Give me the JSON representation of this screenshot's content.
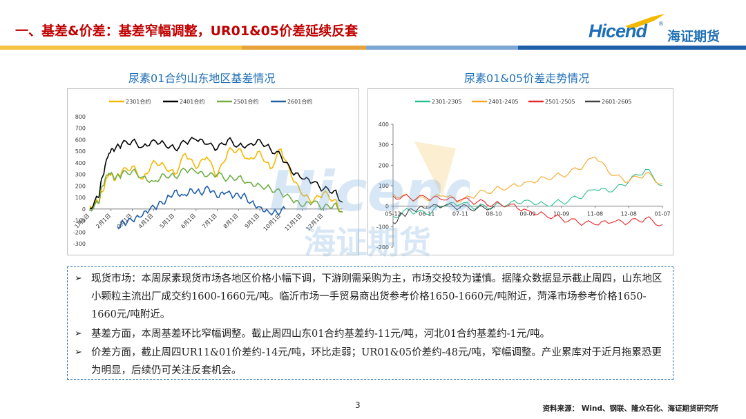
{
  "header": {
    "title": "一、基差&价差：基差窄幅调整，UR01&05价差延续反套",
    "logo_text": "Hicend",
    "logo_cn": "海证期货",
    "band_colors": [
      "#f5c342",
      "#e8a23a",
      "#7aa7d4",
      "#1f5fa8"
    ]
  },
  "watermark": {
    "text": "Hicend",
    "cn": "海证期货"
  },
  "charts": [
    {
      "title": "尿素01合约山东地区基差情况",
      "chart_data": {
        "type": "line",
        "title": "尿素01合约山东地区基差情况",
        "legend_position": "top",
        "ylim": [
          -300,
          800
        ],
        "yticks": [
          -300,
          -200,
          -100,
          0,
          100,
          200,
          300,
          400,
          500,
          600,
          700,
          800
        ],
        "xticks": [
          "1月1日",
          "2月1日",
          "3月1日",
          "4月1日",
          "5月1日",
          "6月1日",
          "7月1日",
          "8月1日",
          "9月1日",
          "10月1日",
          "11月1日",
          "12月1日"
        ],
        "series": [
          {
            "name": "2301合约",
            "color": "#f5b800",
            "x": [
              0,
              0.4,
              0.6,
              0.9,
              1.2,
              1.5,
              2,
              2.5,
              3,
              3.5,
              4,
              4.5,
              5,
              5.5,
              6,
              6.5,
              7,
              7.5,
              8,
              8.5,
              9,
              9.5,
              10,
              10.5,
              11,
              11.5,
              11.9
            ],
            "y": [
              30,
              60,
              150,
              300,
              250,
              320,
              370,
              260,
              420,
              380,
              300,
              480,
              350,
              450,
              280,
              500,
              520,
              430,
              500,
              350,
              520,
              280,
              120,
              60,
              140,
              80,
              -30
            ]
          },
          {
            "name": "2401合约",
            "color": "#000000",
            "x": [
              0,
              0.4,
              0.6,
              0.9,
              1.2,
              1.5,
              2,
              2.5,
              3,
              3.5,
              4,
              4.5,
              5,
              5.5,
              6,
              6.5,
              7,
              7.5,
              8,
              8.5,
              9,
              9.5,
              10,
              10.5,
              11,
              11.5,
              11.9
            ],
            "y": [
              10,
              100,
              280,
              480,
              520,
              560,
              590,
              540,
              600,
              570,
              520,
              580,
              600,
              560,
              520,
              600,
              550,
              560,
              600,
              520,
              460,
              320,
              260,
              230,
              170,
              160,
              60
            ]
          },
          {
            "name": "2501合约",
            "color": "#70ad47",
            "x": [
              0,
              0.4,
              0.6,
              0.9,
              1.2,
              1.5,
              2,
              2.5,
              3,
              3.5,
              4,
              4.5,
              5,
              5.5,
              6,
              6.5,
              7,
              7.5,
              8,
              8.5,
              9,
              9.5,
              10,
              10.5,
              11,
              11.5,
              11.9
            ],
            "y": [
              0,
              50,
              200,
              310,
              260,
              300,
              330,
              280,
              240,
              300,
              280,
              340,
              320,
              280,
              300,
              260,
              280,
              230,
              210,
              180,
              140,
              80,
              20,
              60,
              10,
              40,
              -20
            ]
          },
          {
            "name": "2601合约",
            "color": "#1f5fa8",
            "x": [
              1.3,
              1.6,
              2,
              2.4,
              2.8,
              3.2,
              3.6,
              4,
              4.4,
              4.8,
              5.2,
              5.6,
              6,
              6.4,
              6.8,
              7.2,
              7.6,
              8,
              8.4,
              8.8,
              9.2
            ],
            "y": [
              -150,
              -120,
              -100,
              -70,
              -10,
              30,
              80,
              160,
              120,
              170,
              140,
              180,
              100,
              140,
              110,
              120,
              60,
              20,
              -20,
              -30,
              0
            ]
          }
        ]
      }
    },
    {
      "title": "尿素01&05价差走势情况",
      "chart_data": {
        "type": "line",
        "title": "尿素01&05价差走势情况",
        "legend_position": "top",
        "ylim": [
          -200,
          400
        ],
        "yticks": [
          -200,
          -100,
          0,
          100,
          200,
          300,
          400
        ],
        "xticks": [
          "05-12",
          "06-11",
          "07-11",
          "08-10",
          "09-09",
          "10-09",
          "11-08",
          "12-08",
          "01-07"
        ],
        "series": [
          {
            "name": "2301-2305",
            "color": "#2bbf8e",
            "x": [
              0,
              0.5,
              1,
              1.5,
              2,
              2.5,
              3,
              3.5,
              4,
              4.5,
              5,
              5.5,
              6,
              6.5,
              7,
              7.5,
              8
            ],
            "y": [
              -50,
              -20,
              -40,
              0,
              10,
              -5,
              0,
              20,
              30,
              10,
              20,
              40,
              80,
              70,
              120,
              180,
              100
            ]
          },
          {
            "name": "2401-2405",
            "color": "#f5a623",
            "x": [
              0,
              0.5,
              1,
              1.5,
              2,
              2.5,
              3,
              3.5,
              4,
              4.5,
              5,
              5.5,
              6,
              6.5,
              7,
              7.5,
              8
            ],
            "y": [
              60,
              40,
              30,
              50,
              20,
              60,
              80,
              100,
              120,
              140,
              150,
              180,
              240,
              150,
              120,
              160,
              110
            ]
          },
          {
            "name": "2501-2505",
            "color": "#e8262a",
            "x": [
              0,
              0.5,
              1,
              1.5,
              2,
              2.5,
              3,
              3.5,
              4,
              4.5,
              5,
              5.5,
              6,
              6.5,
              7,
              7.5,
              8
            ],
            "y": [
              50,
              40,
              40,
              30,
              30,
              20,
              10,
              10,
              -20,
              -40,
              -60,
              -80,
              -90,
              -80,
              -80,
              -60,
              -90
            ]
          },
          {
            "name": "2601-2605",
            "color": "#404040",
            "x": [
              0,
              0.3,
              0.6,
              1,
              1.5,
              2,
              2.5,
              3
            ],
            "y": [
              -80,
              -40,
              -20,
              -10,
              0,
              -5,
              -10,
              0
            ]
          }
        ]
      }
    }
  ],
  "bullets": [
    "现货市场：本周尿素现货市场各地区价格小幅下调，下游刚需采购为主，市场交投较为谨慎。据隆众数据显示截止周四，山东地区小颗粒主流出厂成交约1600-1660元/吨。临沂市场一手贸易商出货参考价格1650-1660元/吨附近，菏泽市场参考价格1650-1660元/吨附近。",
    "基差方面，本周基差环比窄幅调整。截止周四山东01合约基差约-11元/吨，河北01合约基差约-1元/吨。",
    "价差方面，截止周四UR11&01价差约-14元/吨，环比走弱；UR01&05价差约-48元/吨，窄幅调整。产业累库对于近月拖累恐更为明显，后续仍可关注反套机会。"
  ],
  "footer": {
    "page": "3",
    "source": "资料来源： Wind、钢联、隆众石化、海证期货研究所"
  }
}
